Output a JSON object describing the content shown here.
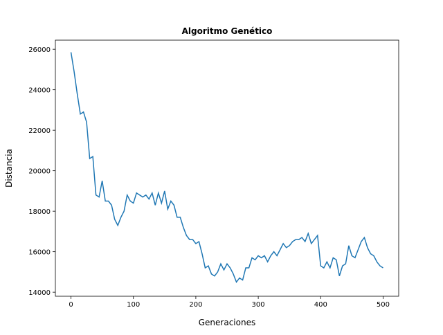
{
  "chart_data": {
    "type": "line",
    "title": "Algoritmo Genético",
    "x_label": "Generaciones",
    "y_label": "Distancia",
    "x": [
      0,
      5,
      10,
      15,
      20,
      25,
      30,
      35,
      40,
      45,
      50,
      55,
      60,
      65,
      70,
      75,
      80,
      85,
      90,
      95,
      100,
      105,
      110,
      115,
      120,
      125,
      130,
      135,
      140,
      145,
      150,
      155,
      160,
      165,
      170,
      175,
      180,
      185,
      190,
      195,
      200,
      205,
      210,
      215,
      220,
      225,
      230,
      235,
      240,
      245,
      250,
      255,
      260,
      265,
      270,
      275,
      280,
      285,
      290,
      295,
      300,
      305,
      310,
      315,
      320,
      325,
      330,
      335,
      340,
      345,
      350,
      355,
      360,
      365,
      370,
      375,
      380,
      385,
      390,
      395,
      400,
      405,
      410,
      415,
      420,
      425,
      430,
      435,
      440,
      445,
      450,
      455,
      460,
      465,
      470,
      475,
      480,
      485,
      490,
      495,
      500
    ],
    "series": [
      {
        "name": "Distancia",
        "color": "#1f77b4",
        "values": [
          25850,
          24900,
          23800,
          22800,
          22900,
          22400,
          20600,
          20700,
          18800,
          18700,
          19500,
          18500,
          18500,
          18300,
          17600,
          17300,
          17700,
          18000,
          18800,
          18500,
          18400,
          18900,
          18800,
          18700,
          18800,
          18600,
          18900,
          18300,
          18900,
          18400,
          19000,
          18100,
          18500,
          18300,
          17700,
          17700,
          17200,
          16800,
          16600,
          16600,
          16400,
          16500,
          15900,
          15200,
          15300,
          14900,
          14800,
          15000,
          15400,
          15100,
          15400,
          15200,
          14900,
          14500,
          14700,
          14600,
          15200,
          15200,
          15700,
          15600,
          15800,
          15700,
          15800,
          15500,
          15800,
          16000,
          15800,
          16100,
          16400,
          16200,
          16300,
          16500,
          16600,
          16600,
          16700,
          16500,
          16900,
          16400,
          16600,
          16800,
          15300,
          15200,
          15500,
          15200,
          15700,
          15600,
          14800,
          15300,
          15400,
          16300,
          15800,
          15700,
          16100,
          16500,
          16700,
          16200,
          15900,
          15800,
          15500,
          15300,
          15200
        ]
      }
    ],
    "xlim": [
      -25,
      525
    ],
    "ylim": [
      13800,
      26450
    ],
    "xticks": [
      0,
      100,
      200,
      300,
      400,
      500
    ],
    "yticks": [
      14000,
      16000,
      18000,
      20000,
      22000,
      24000,
      26000
    ]
  }
}
